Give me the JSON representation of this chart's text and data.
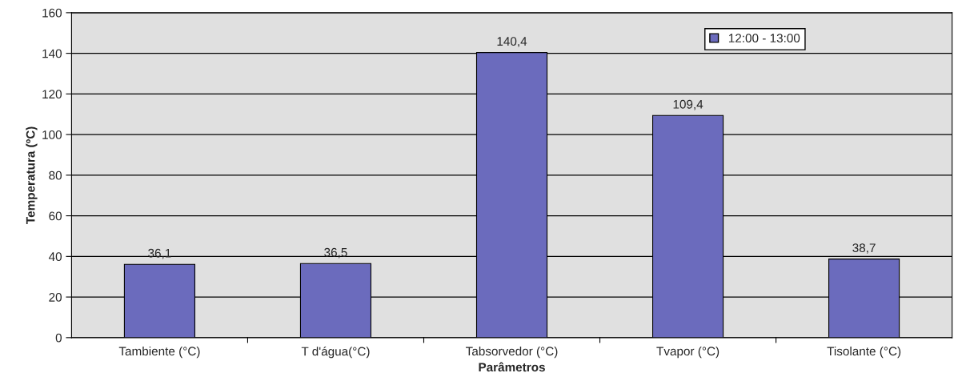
{
  "chart_data": {
    "type": "bar",
    "xlabel": "Parâmetros",
    "ylabel": "Temperatura (ºC)",
    "categories": [
      "Tambiente (°C)",
      "T d'água(°C)",
      "Tabsorvedor (°C)",
      "Tvapor (°C)",
      "Tisolante (°C)"
    ],
    "series": [
      {
        "name": "12:00 - 13:00",
        "color": "#6b6bbd",
        "values": [
          36.1,
          36.5,
          140.4,
          109.4,
          38.7
        ],
        "value_labels": [
          "36,1",
          "36,5",
          "140,4",
          "109,4",
          "38,7"
        ]
      }
    ],
    "ylim": [
      0,
      160
    ],
    "yticks": [
      0,
      20,
      40,
      60,
      80,
      100,
      120,
      140,
      160
    ],
    "grid": "y",
    "legend": "top right"
  }
}
